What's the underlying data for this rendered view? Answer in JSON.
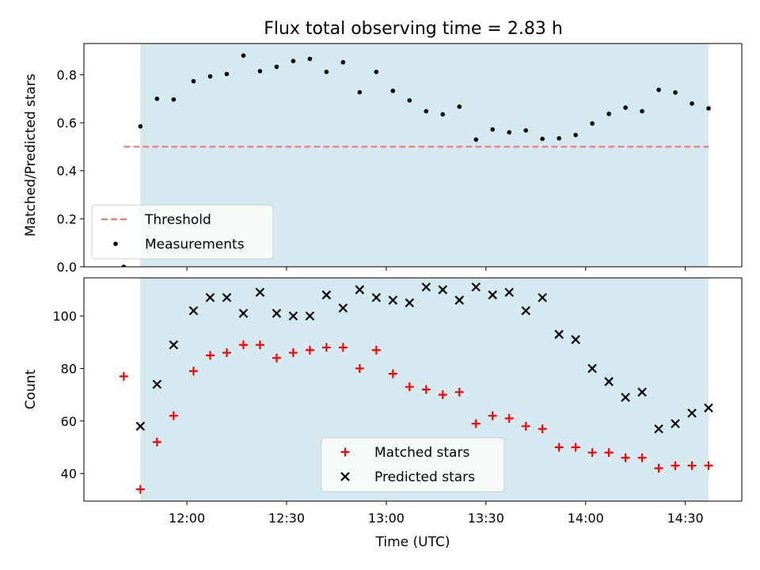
{
  "title": "Flux total observing time = 2.83 h",
  "chart_data": [
    {
      "type": "scatter",
      "ylabel": "Matched/Predicted stars",
      "ylim": [
        0,
        0.93
      ],
      "yticks": [
        "0.0",
        "0.2",
        "0.4",
        "0.6",
        "0.8"
      ],
      "xlim": [
        "11:29",
        "14:47"
      ],
      "shaded_span": [
        "11:46",
        "14:37"
      ],
      "shade_color": "#d4eaf0",
      "legend": {
        "placement": "lower-left",
        "entries": [
          "Threshold",
          "Measurements"
        ]
      },
      "series": [
        {
          "name": "Threshold",
          "kind": "dashed-line",
          "color": "#f07c7c",
          "x": [
            "11:41",
            "14:37"
          ],
          "y": [
            0.5,
            0.5
          ]
        },
        {
          "name": "Measurements",
          "kind": "points",
          "color": "#000000",
          "x": [
            "11:41",
            "11:46",
            "11:51",
            "11:56",
            "12:02",
            "12:07",
            "12:12",
            "12:17",
            "12:22",
            "12:27",
            "12:32",
            "12:37",
            "12:42",
            "12:47",
            "12:52",
            "12:57",
            "13:02",
            "13:07",
            "13:12",
            "13:17",
            "13:22",
            "13:27",
            "13:32",
            "13:37",
            "13:42",
            "13:47",
            "13:52",
            "13:57",
            "14:02",
            "14:07",
            "14:12",
            "14:17",
            "14:22",
            "14:27",
            "14:32",
            "14:37"
          ],
          "y": [
            0.0,
            0.585,
            0.7,
            0.697,
            0.773,
            0.793,
            0.803,
            0.88,
            0.815,
            0.833,
            0.857,
            0.866,
            0.812,
            0.852,
            0.727,
            0.812,
            0.733,
            0.693,
            0.648,
            0.635,
            0.667,
            0.53,
            0.572,
            0.56,
            0.568,
            0.533,
            0.535,
            0.549,
            0.597,
            0.637,
            0.663,
            0.648,
            0.737,
            0.726,
            0.68,
            0.66
          ]
        }
      ]
    },
    {
      "type": "scatter",
      "xlabel": "Time (UTC)",
      "ylabel": "Count",
      "ylim": [
        29.5,
        114.5
      ],
      "yticks": [
        "40",
        "60",
        "80",
        "100"
      ],
      "xlim": [
        "11:29",
        "14:47"
      ],
      "xticks": [
        "12:00",
        "12:30",
        "13:00",
        "13:30",
        "14:00",
        "14:30"
      ],
      "shaded_span": [
        "11:46",
        "14:37"
      ],
      "legend": {
        "placement": "lower-center",
        "entries": [
          "Matched stars",
          "Predicted stars"
        ]
      },
      "series": [
        {
          "name": "Matched stars",
          "kind": "plus",
          "color": "#ff0000",
          "x": [
            "11:41",
            "11:46",
            "11:51",
            "11:56",
            "12:02",
            "12:07",
            "12:12",
            "12:17",
            "12:22",
            "12:27",
            "12:32",
            "12:37",
            "12:42",
            "12:47",
            "12:52",
            "12:57",
            "13:02",
            "13:07",
            "13:12",
            "13:17",
            "13:22",
            "13:27",
            "13:32",
            "13:37",
            "13:42",
            "13:47",
            "13:52",
            "13:57",
            "14:02",
            "14:07",
            "14:12",
            "14:17",
            "14:22",
            "14:27",
            "14:32",
            "14:37"
          ],
          "y": [
            77,
            34,
            52,
            62,
            79,
            85,
            86,
            89,
            89,
            84,
            86,
            87,
            88,
            88,
            80,
            87,
            78,
            73,
            72,
            70,
            71,
            59,
            62,
            61,
            58,
            57,
            50,
            50,
            48,
            48,
            46,
            46,
            42,
            43,
            43,
            43
          ]
        },
        {
          "name": "Predicted stars",
          "kind": "x",
          "color": "#000000",
          "x": [
            "11:46",
            "11:51",
            "11:56",
            "12:02",
            "12:07",
            "12:12",
            "12:17",
            "12:22",
            "12:27",
            "12:32",
            "12:37",
            "12:42",
            "12:47",
            "12:52",
            "12:57",
            "13:02",
            "13:07",
            "13:12",
            "13:17",
            "13:22",
            "13:27",
            "13:32",
            "13:37",
            "13:42",
            "13:47",
            "13:52",
            "13:57",
            "14:02",
            "14:07",
            "14:12",
            "14:17",
            "14:22",
            "14:27",
            "14:32",
            "14:37"
          ],
          "y": [
            58,
            74,
            89,
            102,
            107,
            107,
            101,
            109,
            101,
            100,
            100,
            108,
            103,
            110,
            107,
            106,
            105,
            111,
            110,
            106,
            111,
            108,
            109,
            102,
            107,
            93,
            91,
            80,
            75,
            69,
            71,
            57,
            59,
            63,
            65
          ]
        }
      ]
    }
  ]
}
